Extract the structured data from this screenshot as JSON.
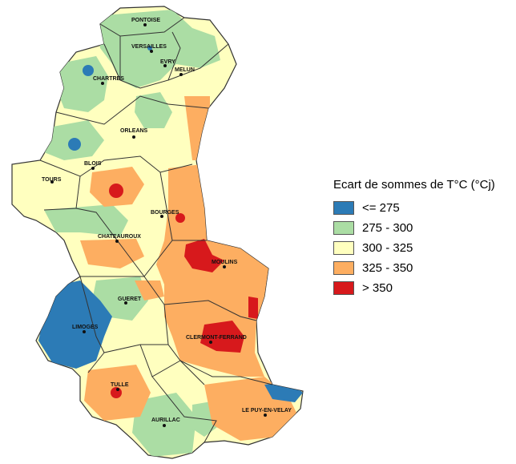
{
  "legend": {
    "title": "Ecart de sommes de T°C (°Cj)",
    "classes": [
      {
        "label": "<= 275",
        "color": "#2c7bb6"
      },
      {
        "label": "275 - 300",
        "color": "#abdda4"
      },
      {
        "label": "300 - 325",
        "color": "#ffffbf"
      },
      {
        "label": "325 - 350",
        "color": "#fdae61"
      },
      {
        "label": "> 350",
        "color": "#d7191c"
      }
    ]
  },
  "cities": {
    "pontoise": "PONTOISE",
    "versailles": "VERSAILLES",
    "evry": "EVRY",
    "melun": "MELUN",
    "chartres": "CHARTRES",
    "orleans": "ORLEANS",
    "blois": "BLOIS",
    "tours": "TOURS",
    "bourges": "BOURGES",
    "chateauroux": "CHATEAUROUX",
    "moulins": "MOULINS",
    "gueret": "GUERET",
    "limoges": "LIMOGES",
    "clermont": "CLERMONT-FERRAND",
    "tulle": "TULLE",
    "aurillac": "AURILLAC",
    "lepuy": "LE PUY-EN-VELAY"
  }
}
